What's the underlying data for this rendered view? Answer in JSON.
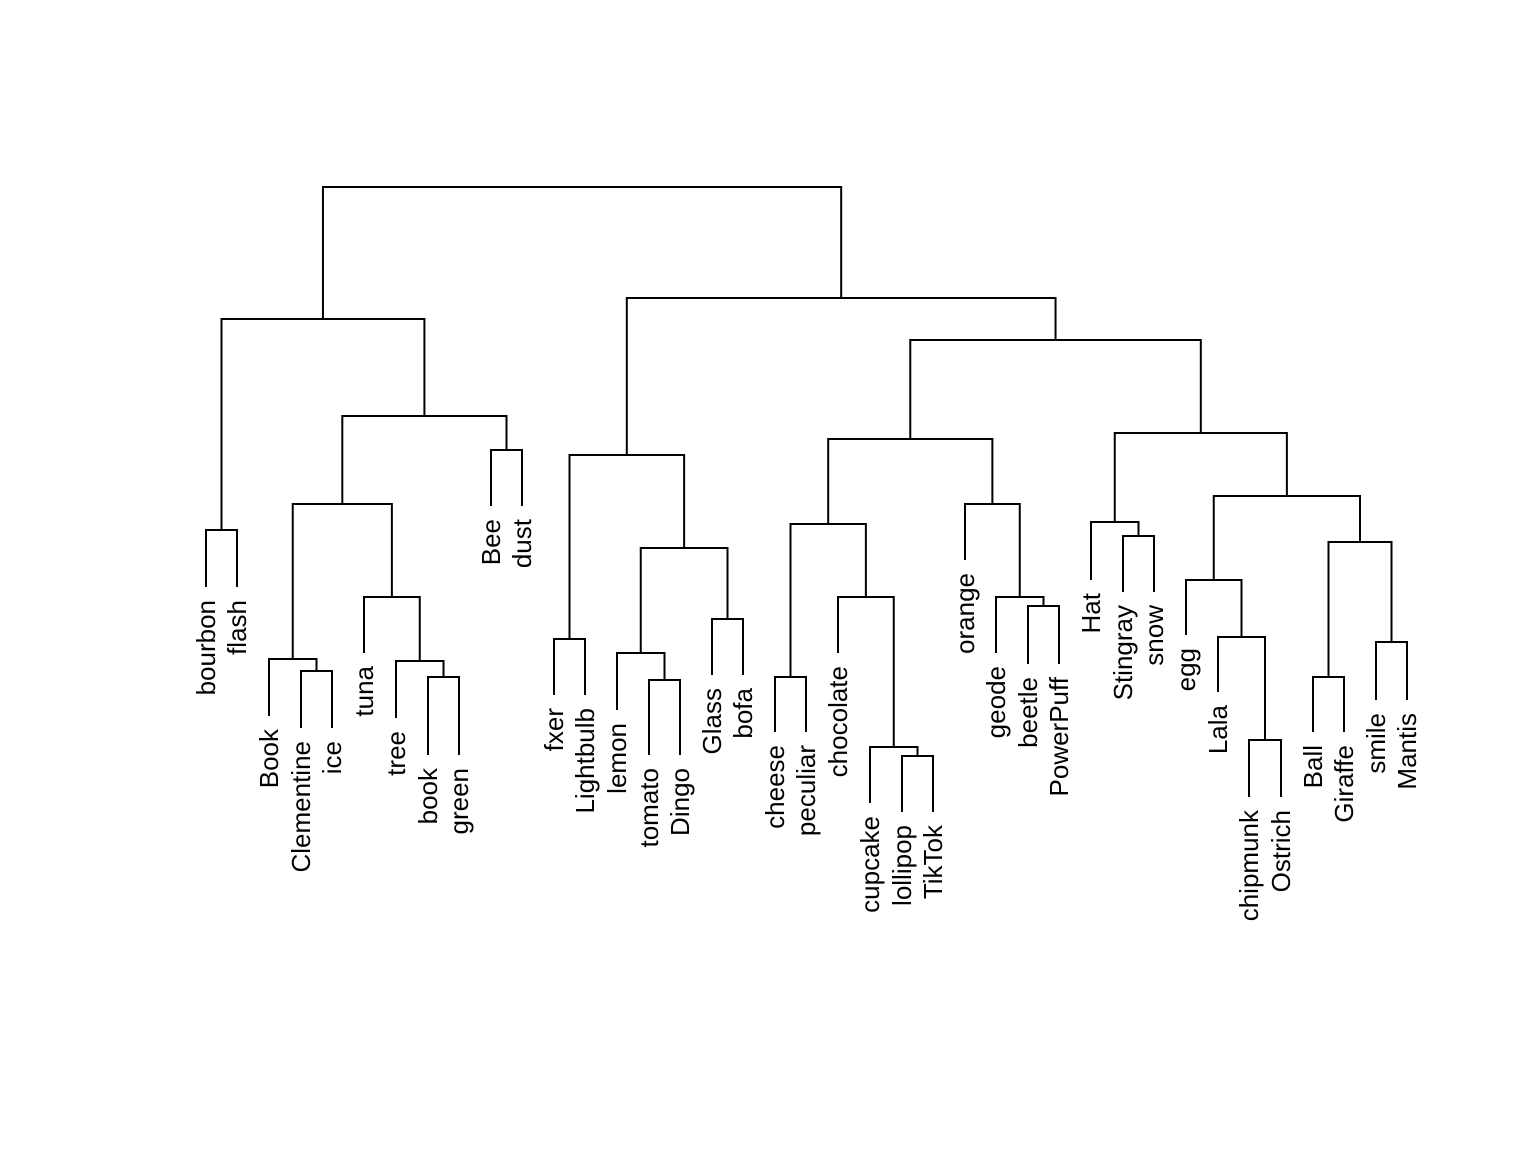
{
  "diagram": {
    "type": "dendrogram",
    "leaves": [
      "bourbon",
      "flash",
      "Book",
      "Clementine",
      "ice",
      "tuna",
      "tree",
      "book",
      "green",
      "Bee",
      "dust",
      "fxer",
      "Lightbulb",
      "lemon",
      "tomato",
      "Dingo",
      "Glass",
      "bofa",
      "cheese",
      "peculiar",
      "chocolate",
      "cupcake",
      "lollipop",
      "TikTok",
      "orange",
      "geode",
      "beetle",
      "PowerPuff",
      "Hat",
      "Stingray",
      "snow",
      "egg",
      "Lala",
      "chipmunk",
      "Ostrich",
      "Ball",
      "Giraffe",
      "smile",
      "Mantis"
    ]
  }
}
